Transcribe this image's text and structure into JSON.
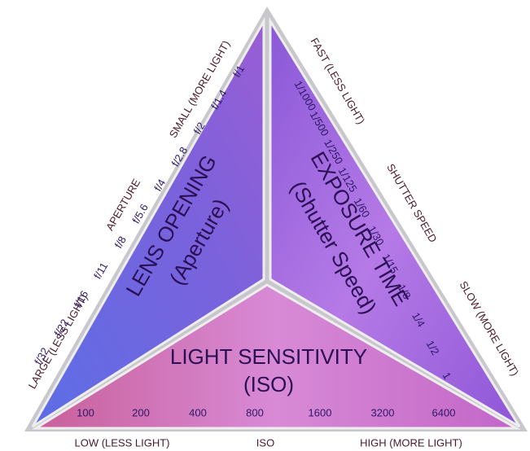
{
  "aperture": {
    "labels": [
      "LARGE (LESS LIGHT)",
      "APERTURE",
      "SMALL (MORE LIGHT)"
    ],
    "title": "LENS OPENING",
    "subtitle": "(Aperture)",
    "scale": [
      "f/32",
      "f/22",
      "f/16",
      "f/11",
      "f/8",
      "f/5.6",
      "f/4",
      "f/2.8",
      "f/2",
      "f/1.4",
      "f/1"
    ]
  },
  "shutter": {
    "labels": [
      "FAST (LESS LIGHT)",
      "SHUTTER SPEED",
      "SLOW (MORE LIGHT)"
    ],
    "title": "EXPOSURE TIME",
    "subtitle": "(Shutter Speed)",
    "scale": [
      "1/1000",
      "1/500",
      "1/250",
      "1/125",
      "1/60",
      "1/30",
      "1/15",
      "1/8",
      "1/4",
      "1/2",
      "1"
    ]
  },
  "iso": {
    "labels": [
      "LOW (LESS LIGHT)",
      "ISO",
      "HIGH (MORE LIGHT)"
    ],
    "title": "LIGHT SENSITIVITY",
    "subtitle": "(ISO)",
    "scale": [
      "100",
      "200",
      "400",
      "800",
      "1600",
      "3200",
      "6400"
    ]
  }
}
